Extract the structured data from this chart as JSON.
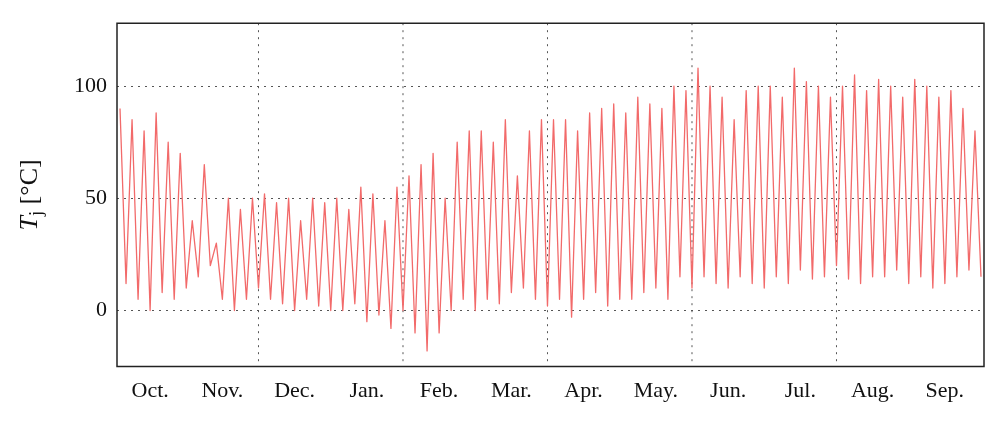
{
  "chart_data": {
    "type": "line",
    "ylabel": "T$_{j}$ [°C]",
    "ylim": [
      -25,
      128
    ],
    "yticks": [
      0,
      50,
      100
    ],
    "grid": true,
    "legend": false,
    "marker": "none",
    "line_style": "solid",
    "categories": [
      null,
      null,
      null,
      null,
      null,
      "Oct.",
      null,
      null,
      null,
      null,
      null,
      null,
      null,
      null,
      null,
      null,
      null,
      "Nov.",
      null,
      null,
      null,
      null,
      null,
      null,
      null,
      null,
      null,
      null,
      null,
      "Dec.",
      null,
      null,
      null,
      null,
      null,
      null,
      null,
      null,
      null,
      null,
      null,
      "Jan.",
      null,
      null,
      null,
      null,
      null,
      null,
      null,
      null,
      null,
      null,
      null,
      "Feb.",
      null,
      null,
      null,
      null,
      null,
      null,
      null,
      null,
      null,
      null,
      null,
      "Mar.",
      null,
      null,
      null,
      null,
      null,
      null,
      null,
      null,
      null,
      null,
      null,
      "Apr.",
      null,
      null,
      null,
      null,
      null,
      null,
      null,
      null,
      null,
      null,
      null,
      "May.",
      null,
      null,
      null,
      null,
      null,
      null,
      null,
      null,
      null,
      null,
      null,
      "Jun.",
      null,
      null,
      null,
      null,
      null,
      null,
      null,
      null,
      null,
      null,
      null,
      "Jul.",
      null,
      null,
      null,
      null,
      null,
      null,
      null,
      null,
      null,
      null,
      null,
      "Aug.",
      null,
      null,
      null,
      null,
      null,
      null,
      null,
      null,
      null,
      null,
      null,
      "Sep.",
      null,
      null,
      null,
      null,
      null,
      null
    ],
    "series": [
      {
        "color": "#f26a6a",
        "values": [
          90,
          12,
          85,
          5,
          80,
          0,
          88,
          8,
          75,
          5,
          70,
          10,
          40,
          15,
          65,
          20,
          30,
          5,
          50,
          0,
          45,
          5,
          50,
          10,
          52,
          5,
          48,
          3,
          50,
          0,
          40,
          5,
          50,
          2,
          48,
          0,
          50,
          0,
          45,
          3,
          55,
          -5,
          52,
          -2,
          40,
          -8,
          55,
          0,
          60,
          -10,
          65,
          -18,
          70,
          -10,
          50,
          0,
          75,
          5,
          80,
          0,
          80,
          5,
          75,
          3,
          85,
          8,
          60,
          10,
          80,
          5,
          85,
          2,
          85,
          5,
          85,
          -3,
          80,
          5,
          88,
          8,
          90,
          2,
          92,
          5,
          88,
          5,
          95,
          8,
          92,
          10,
          90,
          5,
          100,
          15,
          98,
          10,
          108,
          15,
          100,
          12,
          95,
          10,
          85,
          15,
          98,
          12,
          100,
          10,
          100,
          15,
          95,
          12,
          108,
          18,
          102,
          14,
          100,
          15,
          95,
          20,
          100,
          14,
          105,
          12,
          98,
          15,
          103,
          15,
          100,
          18,
          95,
          12,
          103,
          15,
          100,
          10,
          95,
          12,
          98,
          15,
          90,
          18,
          80,
          15
        ]
      }
    ]
  }
}
